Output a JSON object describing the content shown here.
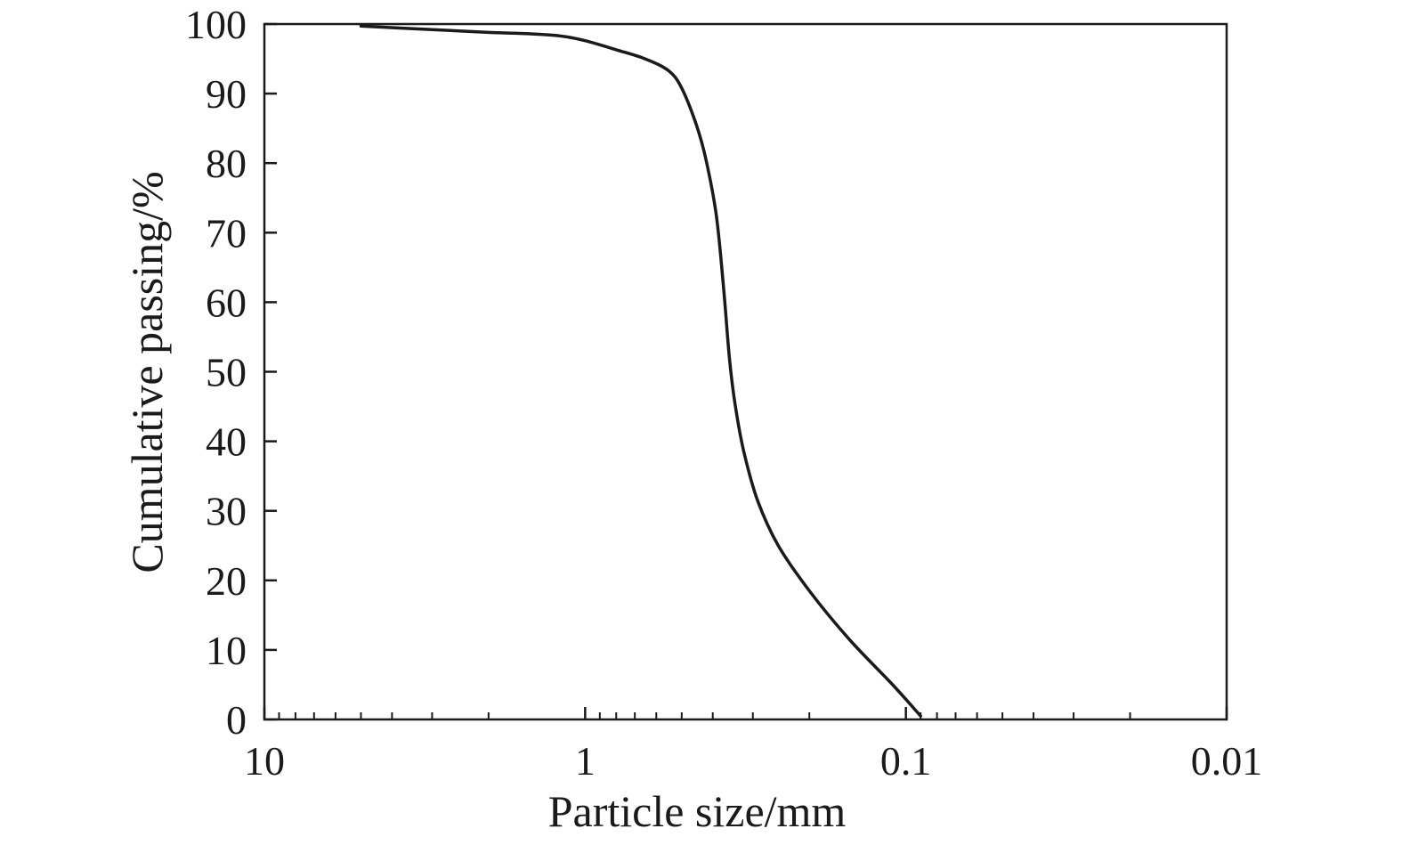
{
  "chart_data": {
    "type": "line",
    "title": "",
    "xlabel": "Particle size/mm",
    "ylabel": "Cumulative passing/%",
    "x_scale": "log",
    "x_reversed": true,
    "xlim": [
      10,
      0.01
    ],
    "ylim": [
      0,
      100
    ],
    "x_ticks": [
      10,
      1,
      0.1,
      0.01
    ],
    "x_tick_labels": [
      "10",
      "1",
      "0.1",
      "0.01"
    ],
    "y_ticks": [
      0,
      10,
      20,
      30,
      40,
      50,
      60,
      70,
      80,
      90,
      100
    ],
    "y_tick_labels": [
      "0",
      "10",
      "20",
      "30",
      "40",
      "50",
      "60",
      "70",
      "80",
      "90",
      "100"
    ],
    "grid": false,
    "legend": "none",
    "line_color": "#1a1a1a",
    "series": [
      {
        "points": [
          {
            "x": 5.0,
            "y": 99.7
          },
          {
            "x": 3.0,
            "y": 99.2
          },
          {
            "x": 2.0,
            "y": 98.8
          },
          {
            "x": 1.5,
            "y": 98.6
          },
          {
            "x": 1.2,
            "y": 98.3
          },
          {
            "x": 1.0,
            "y": 97.6
          },
          {
            "x": 0.8,
            "y": 96.3
          },
          {
            "x": 0.65,
            "y": 95.0
          },
          {
            "x": 0.55,
            "y": 93.3
          },
          {
            "x": 0.5,
            "y": 90.8
          },
          {
            "x": 0.45,
            "y": 85.5
          },
          {
            "x": 0.42,
            "y": 80.5
          },
          {
            "x": 0.39,
            "y": 72.5
          },
          {
            "x": 0.37,
            "y": 62.0
          },
          {
            "x": 0.355,
            "y": 52.0
          },
          {
            "x": 0.34,
            "y": 45.0
          },
          {
            "x": 0.32,
            "y": 38.5
          },
          {
            "x": 0.29,
            "y": 31.5
          },
          {
            "x": 0.25,
            "y": 25.0
          },
          {
            "x": 0.2,
            "y": 18.5
          },
          {
            "x": 0.15,
            "y": 11.5
          },
          {
            "x": 0.11,
            "y": 5.0
          },
          {
            "x": 0.09,
            "y": 0.5
          }
        ]
      }
    ]
  }
}
